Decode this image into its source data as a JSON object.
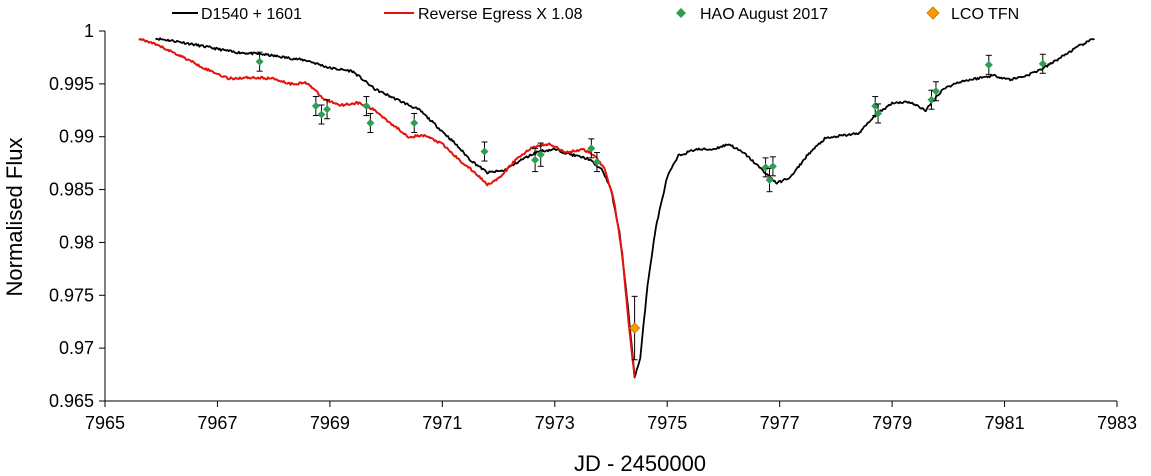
{
  "chart_data": {
    "type": "line",
    "xlabel": "JD - 2450000",
    "ylabel": "Normalised Flux",
    "xlim": [
      7965,
      7983
    ],
    "ylim": [
      0.965,
      1.0
    ],
    "x_ticks": [
      7965,
      7967,
      7969,
      7971,
      7973,
      7975,
      7977,
      7979,
      7981,
      7983
    ],
    "y_ticks": [
      0.965,
      0.97,
      0.975,
      0.98,
      0.985,
      0.99,
      0.995,
      1.0
    ],
    "x_tick_labels": [
      "7965",
      "7967",
      "7969",
      "7971",
      "7973",
      "7975",
      "7977",
      "7979",
      "7981",
      "7983"
    ],
    "y_tick_labels": [
      "0.965",
      "0.97",
      "0.975",
      "0.98",
      "0.985",
      "0.99",
      "0.995",
      "1"
    ],
    "grid": false,
    "legend_position": "top",
    "series": [
      {
        "name": "D1540 + 1601",
        "kind": "line",
        "color": "#000000",
        "points": [
          [
            7965.9,
            0.9993
          ],
          [
            7966.3,
            0.999
          ],
          [
            7966.8,
            0.9985
          ],
          [
            7967.3,
            0.998
          ],
          [
            7967.8,
            0.9978
          ],
          [
            7968.2,
            0.9975
          ],
          [
            7968.6,
            0.9972
          ],
          [
            7969.0,
            0.9965
          ],
          [
            7969.4,
            0.9962
          ],
          [
            7969.8,
            0.9945
          ],
          [
            7970.2,
            0.9935
          ],
          [
            7970.6,
            0.9925
          ],
          [
            7970.9,
            0.991
          ],
          [
            7971.2,
            0.9895
          ],
          [
            7971.5,
            0.9878
          ],
          [
            7971.8,
            0.9866
          ],
          [
            7972.1,
            0.9868
          ],
          [
            7972.4,
            0.9878
          ],
          [
            7972.7,
            0.9886
          ],
          [
            7973.0,
            0.9888
          ],
          [
            7973.3,
            0.9883
          ],
          [
            7973.6,
            0.9879
          ],
          [
            7973.85,
            0.9868
          ],
          [
            7974.0,
            0.985
          ],
          [
            7974.15,
            0.981
          ],
          [
            7974.3,
            0.974
          ],
          [
            7974.42,
            0.9673
          ],
          [
            7974.52,
            0.969
          ],
          [
            7974.65,
            0.976
          ],
          [
            7974.8,
            0.9815
          ],
          [
            7975.0,
            0.9862
          ],
          [
            7975.2,
            0.9882
          ],
          [
            7975.5,
            0.9888
          ],
          [
            7975.8,
            0.9888
          ],
          [
            7976.1,
            0.9893
          ],
          [
            7976.4,
            0.9883
          ],
          [
            7976.7,
            0.9868
          ],
          [
            7976.95,
            0.9856
          ],
          [
            7977.2,
            0.9862
          ],
          [
            7977.5,
            0.9883
          ],
          [
            7977.8,
            0.9898
          ],
          [
            7978.1,
            0.9901
          ],
          [
            7978.4,
            0.9903
          ],
          [
            7978.7,
            0.992
          ],
          [
            7979.0,
            0.9932
          ],
          [
            7979.3,
            0.9933
          ],
          [
            7979.6,
            0.9925
          ],
          [
            7979.9,
            0.9945
          ],
          [
            7980.2,
            0.9952
          ],
          [
            7980.5,
            0.9955
          ],
          [
            7980.8,
            0.9958
          ],
          [
            7981.1,
            0.9954
          ],
          [
            7981.4,
            0.9958
          ],
          [
            7981.7,
            0.9965
          ],
          [
            7982.0,
            0.9975
          ],
          [
            7982.3,
            0.9985
          ],
          [
            7982.6,
            0.9993
          ]
        ]
      },
      {
        "name": "Reverse Egress X 1.08",
        "kind": "line",
        "color": "#e3120b",
        "points": [
          [
            7965.6,
            0.9993
          ],
          [
            7966.0,
            0.9985
          ],
          [
            7966.4,
            0.9975
          ],
          [
            7966.8,
            0.9964
          ],
          [
            7967.2,
            0.9955
          ],
          [
            7967.6,
            0.9956
          ],
          [
            7968.0,
            0.9955
          ],
          [
            7968.3,
            0.995
          ],
          [
            7968.6,
            0.9951
          ],
          [
            7968.9,
            0.9935
          ],
          [
            7969.2,
            0.993
          ],
          [
            7969.5,
            0.9932
          ],
          [
            7969.8,
            0.9925
          ],
          [
            7970.1,
            0.9912
          ],
          [
            7970.4,
            0.99
          ],
          [
            7970.7,
            0.9901
          ],
          [
            7971.0,
            0.9893
          ],
          [
            7971.3,
            0.9878
          ],
          [
            7971.6,
            0.9865
          ],
          [
            7971.8,
            0.9855
          ],
          [
            7972.0,
            0.986
          ],
          [
            7972.3,
            0.9878
          ],
          [
            7972.6,
            0.989
          ],
          [
            7972.9,
            0.9893
          ],
          [
            7973.2,
            0.9885
          ],
          [
            7973.5,
            0.9888
          ],
          [
            7973.7,
            0.9883
          ],
          [
            7973.9,
            0.9868
          ],
          [
            7974.05,
            0.984
          ],
          [
            7974.2,
            0.979
          ],
          [
            7974.32,
            0.972
          ],
          [
            7974.42,
            0.9673
          ]
        ]
      },
      {
        "name": "HAO August 2017",
        "kind": "points",
        "marker": "diamond",
        "color": "#2e9e55",
        "error_bars": true,
        "points": [
          [
            7967.75,
            0.9971,
            0.0009
          ],
          [
            7968.75,
            0.9929,
            0.0009
          ],
          [
            7968.85,
            0.9921,
            0.0009
          ],
          [
            7968.95,
            0.9926,
            0.0009
          ],
          [
            7969.65,
            0.9929,
            0.0009
          ],
          [
            7969.72,
            0.9913,
            0.0009
          ],
          [
            7970.5,
            0.9913,
            0.0009
          ],
          [
            7971.75,
            0.9886,
            0.0009
          ],
          [
            7972.65,
            0.9878,
            0.0011
          ],
          [
            7972.75,
            0.9883,
            0.0011
          ],
          [
            7973.65,
            0.9889,
            0.0009
          ],
          [
            7973.75,
            0.9876,
            0.0009
          ],
          [
            7976.75,
            0.9871,
            0.0009
          ],
          [
            7976.82,
            0.9859,
            0.0011
          ],
          [
            7976.88,
            0.9872,
            0.0009
          ],
          [
            7978.7,
            0.9929,
            0.0009
          ],
          [
            7978.75,
            0.9922,
            0.0009
          ],
          [
            7979.7,
            0.9935,
            0.0009
          ],
          [
            7979.78,
            0.9943,
            0.0009
          ],
          [
            7980.72,
            0.9968,
            0.0009
          ],
          [
            7981.68,
            0.9969,
            0.0009
          ]
        ]
      },
      {
        "name": "LCO TFN",
        "kind": "points",
        "marker": "diamond",
        "color": "#ff9900",
        "error_bars": true,
        "points": [
          [
            7974.42,
            0.9719,
            0.003
          ]
        ]
      }
    ]
  }
}
